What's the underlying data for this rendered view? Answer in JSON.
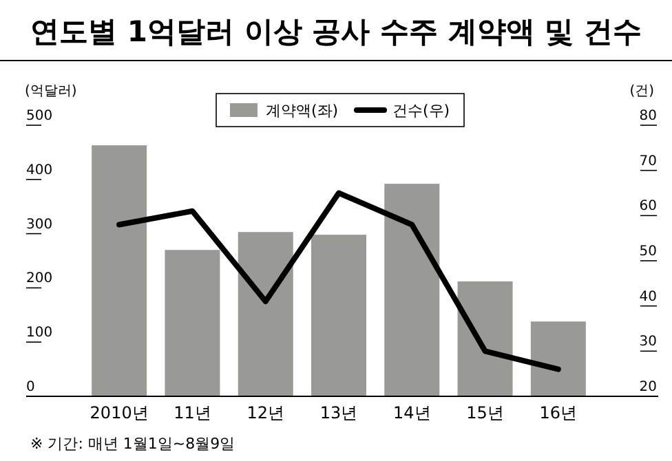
{
  "chart_data": {
    "type": "bar",
    "title": "연도별 1억달러 이상 공사 수주 계약액 및 건수",
    "categories": [
      "2010년",
      "11년",
      "12년",
      "13년",
      "14년",
      "15년",
      "16년"
    ],
    "series": [
      {
        "name": "계약액(좌)",
        "type": "bar",
        "color": "#999a96",
        "values": [
          463,
          270,
          303,
          298,
          392,
          212,
          138
        ]
      },
      {
        "name": "건수(우)",
        "type": "line",
        "axis": "y2",
        "color": "#000000",
        "values": [
          58,
          61,
          41,
          65,
          58,
          30,
          26
        ]
      }
    ],
    "ylabel": "(억달러)",
    "y2label": "(건)",
    "ylim": [
      0,
      500
    ],
    "yticks": [
      0,
      100,
      200,
      300,
      400,
      500
    ],
    "y2lim": [
      20,
      80
    ],
    "y2ticks": [
      20,
      30,
      40,
      50,
      60,
      70,
      80
    ],
    "legend": "top",
    "grid": false,
    "marker": "none",
    "line_style": "solid",
    "annotations": [
      "※ 기간: 매년 1월1일~8월9일"
    ]
  }
}
